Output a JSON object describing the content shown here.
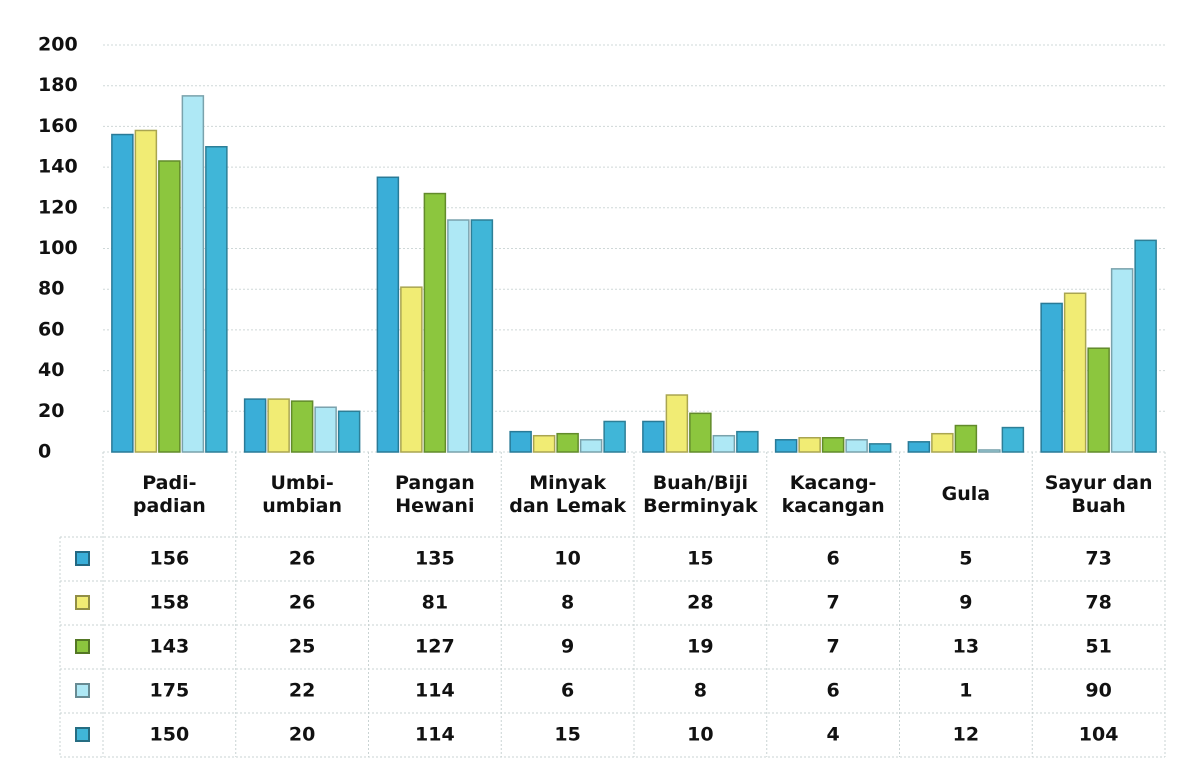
{
  "chart_data": {
    "type": "bar",
    "categories": [
      "Padi-\npadian",
      "Umbi-\numbian",
      "Pangan\nHewani",
      "Minyak\ndan Lemak",
      "Buah/Biji\nBerminyak",
      "Kacang-\nkacangan",
      "Gula",
      "Sayur dan\nBuah"
    ],
    "series": [
      {
        "color": "#3aaed8",
        "values": [
          156,
          26,
          135,
          10,
          15,
          6,
          5,
          73
        ]
      },
      {
        "color": "#f1ec74",
        "values": [
          158,
          26,
          81,
          8,
          28,
          7,
          9,
          78
        ]
      },
      {
        "color": "#8cc63e",
        "values": [
          143,
          25,
          127,
          9,
          19,
          7,
          13,
          51
        ]
      },
      {
        "color": "#aee8f5",
        "values": [
          175,
          22,
          114,
          6,
          8,
          6,
          1,
          90
        ]
      },
      {
        "color": "#40b6d8",
        "values": [
          150,
          20,
          114,
          15,
          10,
          4,
          12,
          104
        ]
      }
    ],
    "ylim": [
      0,
      200
    ],
    "yticks": [
      0,
      20,
      40,
      60,
      80,
      100,
      120,
      140,
      160,
      180,
      200
    ],
    "grid": true,
    "data_table": true
  }
}
